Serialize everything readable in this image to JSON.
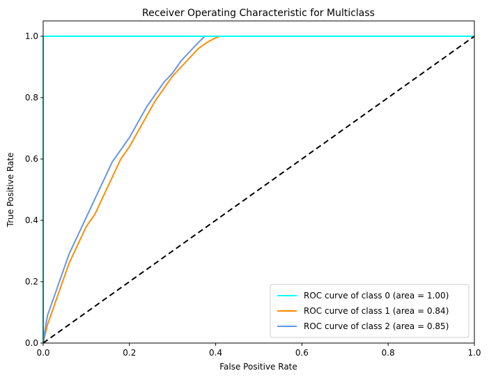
{
  "chart_data": {
    "type": "line",
    "title": "Receiver Operating Characteristic for Multiclass",
    "xlabel": "False Positive Rate",
    "ylabel": "True Positive Rate",
    "xlim": [
      0.0,
      1.0
    ],
    "ylim": [
      0.0,
      1.05
    ],
    "xticks": [
      0.0,
      0.2,
      0.4,
      0.6,
      0.8,
      1.0
    ],
    "yticks": [
      0.0,
      0.2,
      0.4,
      0.6,
      0.8,
      1.0
    ],
    "xtick_labels": [
      "0.0",
      "0.2",
      "0.4",
      "0.6",
      "0.8",
      "1.0"
    ],
    "ytick_labels": [
      "0.0",
      "0.2",
      "0.4",
      "0.6",
      "0.8",
      "1.0"
    ],
    "legend_position": "lower-right",
    "series": [
      {
        "name": "ROC curve of class 0 (area = 1.00)",
        "color": "#00ffff",
        "dash": "solid",
        "x": [
          0.0,
          0.0,
          1.0
        ],
        "y": [
          0.0,
          1.0,
          1.0
        ]
      },
      {
        "name": "ROC curve of class 1 (area = 0.84)",
        "color": "#ff8c00",
        "dash": "solid",
        "x": [
          0.0,
          0.005,
          0.01,
          0.02,
          0.03,
          0.04,
          0.05,
          0.06,
          0.07,
          0.08,
          0.09,
          0.1,
          0.11,
          0.12,
          0.13,
          0.14,
          0.15,
          0.16,
          0.17,
          0.18,
          0.19,
          0.2,
          0.22,
          0.24,
          0.26,
          0.28,
          0.3,
          0.32,
          0.34,
          0.36,
          0.38,
          0.4,
          0.41,
          1.0
        ],
        "y": [
          0.0,
          0.03,
          0.06,
          0.1,
          0.14,
          0.18,
          0.22,
          0.26,
          0.29,
          0.32,
          0.35,
          0.38,
          0.4,
          0.42,
          0.45,
          0.48,
          0.51,
          0.54,
          0.57,
          0.6,
          0.62,
          0.64,
          0.69,
          0.74,
          0.79,
          0.83,
          0.87,
          0.9,
          0.93,
          0.96,
          0.98,
          0.995,
          1.0,
          1.0
        ]
      },
      {
        "name": "ROC curve of class 2 (area = 0.85)",
        "color": "#6495ed",
        "dash": "solid",
        "x": [
          0.0,
          0.005,
          0.01,
          0.02,
          0.03,
          0.04,
          0.05,
          0.06,
          0.07,
          0.08,
          0.09,
          0.1,
          0.11,
          0.12,
          0.13,
          0.14,
          0.15,
          0.16,
          0.17,
          0.18,
          0.19,
          0.2,
          0.22,
          0.24,
          0.26,
          0.28,
          0.3,
          0.32,
          0.34,
          0.36,
          0.375,
          1.0
        ],
        "y": [
          0.0,
          0.05,
          0.09,
          0.13,
          0.17,
          0.21,
          0.25,
          0.29,
          0.32,
          0.35,
          0.38,
          0.41,
          0.44,
          0.47,
          0.5,
          0.53,
          0.56,
          0.59,
          0.61,
          0.63,
          0.65,
          0.67,
          0.72,
          0.77,
          0.81,
          0.85,
          0.88,
          0.92,
          0.95,
          0.98,
          1.0,
          1.0
        ]
      },
      {
        "name": "Chance",
        "color": "#000000",
        "dash": "dashed",
        "x": [
          0.0,
          1.0
        ],
        "y": [
          0.0,
          1.0
        ],
        "in_legend": false
      }
    ]
  }
}
